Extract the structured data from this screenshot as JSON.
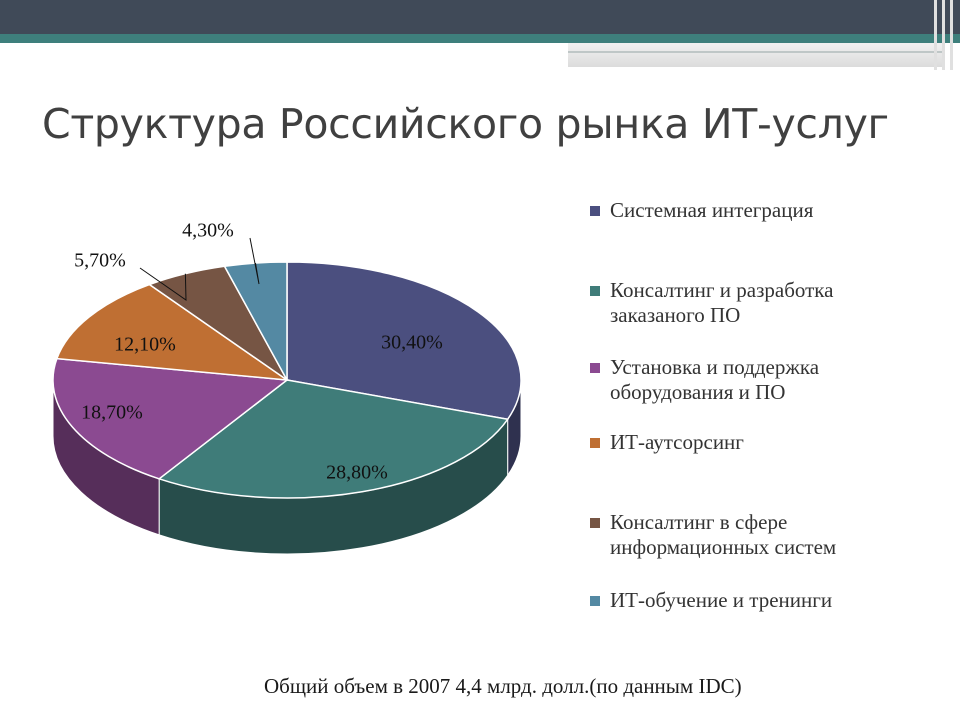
{
  "slide": {
    "title": "Структура Российского рынка ИТ-услуг",
    "footnote": "Общий объем в 2007 4,4 млрд. долл.(по данным IDC)"
  },
  "chart_data": {
    "type": "pie",
    "title": "",
    "legend_position": "right",
    "slices": [
      {
        "name": "Системная интеграция",
        "value": 30.4,
        "label": "30,40%",
        "color": "#4b4f7f"
      },
      {
        "name": "Консалтинг и разработка заказаного ПО",
        "value": 28.8,
        "label": "28,80%",
        "color": "#3f7c79"
      },
      {
        "name": "Установка и поддержка оборудования и ПО",
        "value": 18.7,
        "label": "18,70%",
        "color": "#8b4a91"
      },
      {
        "name": "ИТ-аутсорсинг",
        "value": 12.1,
        "label": "12,10%",
        "color": "#bf6f33"
      },
      {
        "name": "Консалтинг в сфере информационных систем",
        "value": 5.7,
        "label": "5,70%",
        "color": "#765544"
      },
      {
        "name": "ИТ-обучение и тренинги",
        "value": 4.3,
        "label": "4,30%",
        "color": "#5489a3"
      }
    ]
  }
}
